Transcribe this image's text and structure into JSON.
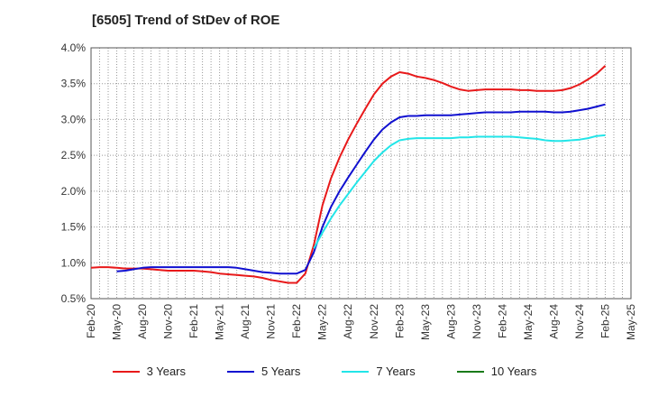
{
  "chart_data": {
    "type": "line",
    "title": "[6505]  Trend of StDev of ROE",
    "xlabel": "",
    "ylabel": "",
    "ylim": [
      0.5,
      4.0
    ],
    "y_ticks": [
      0.5,
      1.0,
      1.5,
      2.0,
      2.5,
      3.0,
      3.5,
      4.0
    ],
    "y_tick_labels": [
      "0.5%",
      "1.0%",
      "1.5%",
      "2.0%",
      "2.5%",
      "3.0%",
      "3.5%",
      "4.0%"
    ],
    "x_tick_labels": [
      "Feb-20",
      "May-20",
      "Aug-20",
      "Nov-20",
      "Feb-21",
      "May-21",
      "Aug-21",
      "Nov-21",
      "Feb-22",
      "May-22",
      "Aug-22",
      "Nov-22",
      "Feb-23",
      "May-23",
      "Aug-23",
      "Nov-23",
      "Feb-24",
      "May-24",
      "Aug-24",
      "Nov-24",
      "Feb-25",
      "May-25"
    ],
    "grid": true,
    "legend_position": "bottom",
    "series": [
      {
        "name": "3 Years",
        "color": "#e8191a",
        "x": [
          "Feb-20",
          "Mar-20",
          "Apr-20",
          "May-20",
          "Jun-20",
          "Jul-20",
          "Aug-20",
          "Sep-20",
          "Oct-20",
          "Nov-20",
          "Dec-20",
          "Jan-21",
          "Feb-21",
          "Mar-21",
          "Apr-21",
          "May-21",
          "Jun-21",
          "Jul-21",
          "Aug-21",
          "Sep-21",
          "Oct-21",
          "Nov-21",
          "Dec-21",
          "Jan-22",
          "Feb-22",
          "Mar-22",
          "Apr-22",
          "May-22",
          "Jun-22",
          "Jul-22",
          "Aug-22",
          "Sep-22",
          "Oct-22",
          "Nov-22",
          "Dec-22",
          "Jan-23",
          "Feb-23",
          "Mar-23",
          "Apr-23",
          "May-23",
          "Jun-23",
          "Jul-23",
          "Aug-23",
          "Sep-23",
          "Oct-23",
          "Nov-23",
          "Dec-23",
          "Jan-24",
          "Feb-24",
          "Mar-24",
          "Apr-24",
          "May-24",
          "Jun-24",
          "Jul-24",
          "Aug-24",
          "Sep-24",
          "Oct-24",
          "Nov-24",
          "Dec-24",
          "Jan-25",
          "Feb-25"
        ],
        "values": [
          0.93,
          0.94,
          0.94,
          0.93,
          0.92,
          0.92,
          0.92,
          0.91,
          0.9,
          0.89,
          0.89,
          0.89,
          0.89,
          0.88,
          0.87,
          0.85,
          0.84,
          0.83,
          0.82,
          0.81,
          0.79,
          0.76,
          0.74,
          0.72,
          0.72,
          0.85,
          1.25,
          1.8,
          2.18,
          2.47,
          2.72,
          2.94,
          3.15,
          3.35,
          3.5,
          3.6,
          3.66,
          3.64,
          3.6,
          3.58,
          3.55,
          3.51,
          3.46,
          3.42,
          3.4,
          3.41,
          3.42,
          3.42,
          3.42,
          3.42,
          3.41,
          3.41,
          3.4,
          3.4,
          3.4,
          3.41,
          3.44,
          3.49,
          3.56,
          3.64,
          3.75
        ]
      },
      {
        "name": "5 Years",
        "color": "#1010d0",
        "x": [
          "May-20",
          "Jun-20",
          "Jul-20",
          "Aug-20",
          "Sep-20",
          "Oct-20",
          "Nov-20",
          "Dec-20",
          "Jan-21",
          "Feb-21",
          "Mar-21",
          "Apr-21",
          "May-21",
          "Jun-21",
          "Jul-21",
          "Aug-21",
          "Sep-21",
          "Oct-21",
          "Nov-21",
          "Dec-21",
          "Jan-22",
          "Feb-22",
          "Mar-22",
          "Apr-22",
          "May-22",
          "Jun-22",
          "Jul-22",
          "Aug-22",
          "Sep-22",
          "Oct-22",
          "Nov-22",
          "Dec-22",
          "Jan-23",
          "Feb-23",
          "Mar-23",
          "Apr-23",
          "May-23",
          "Jun-23",
          "Jul-23",
          "Aug-23",
          "Sep-23",
          "Oct-23",
          "Nov-23",
          "Dec-23",
          "Jan-24",
          "Feb-24",
          "Mar-24",
          "Apr-24",
          "May-24",
          "Jun-24",
          "Jul-24",
          "Aug-24",
          "Sep-24",
          "Oct-24",
          "Nov-24",
          "Dec-24",
          "Jan-25",
          "Feb-25"
        ],
        "values": [
          0.88,
          0.89,
          0.91,
          0.93,
          0.94,
          0.94,
          0.94,
          0.94,
          0.94,
          0.94,
          0.94,
          0.94,
          0.94,
          0.94,
          0.93,
          0.91,
          0.89,
          0.87,
          0.86,
          0.85,
          0.85,
          0.85,
          0.9,
          1.15,
          1.5,
          1.78,
          2.0,
          2.19,
          2.37,
          2.55,
          2.72,
          2.86,
          2.96,
          3.03,
          3.05,
          3.05,
          3.06,
          3.06,
          3.06,
          3.06,
          3.07,
          3.08,
          3.09,
          3.1,
          3.1,
          3.1,
          3.1,
          3.11,
          3.11,
          3.11,
          3.11,
          3.1,
          3.1,
          3.11,
          3.13,
          3.15,
          3.18,
          3.21
        ]
      },
      {
        "name": "7 Years",
        "color": "#22e5e8",
        "x": [
          "Apr-22",
          "May-22",
          "Jun-22",
          "Jul-22",
          "Aug-22",
          "Sep-22",
          "Oct-22",
          "Nov-22",
          "Dec-22",
          "Jan-23",
          "Feb-23",
          "Mar-23",
          "Apr-23",
          "May-23",
          "Jun-23",
          "Jul-23",
          "Aug-23",
          "Sep-23",
          "Oct-23",
          "Nov-23",
          "Dec-23",
          "Jan-24",
          "Feb-24",
          "Mar-24",
          "Apr-24",
          "May-24",
          "Jun-24",
          "Jul-24",
          "Aug-24",
          "Sep-24",
          "Oct-24",
          "Nov-24",
          "Dec-24",
          "Jan-25",
          "Feb-25"
        ],
        "values": [
          1.2,
          1.42,
          1.62,
          1.8,
          1.96,
          2.12,
          2.27,
          2.42,
          2.54,
          2.64,
          2.71,
          2.73,
          2.74,
          2.74,
          2.74,
          2.74,
          2.74,
          2.75,
          2.75,
          2.76,
          2.76,
          2.76,
          2.76,
          2.76,
          2.75,
          2.74,
          2.73,
          2.71,
          2.7,
          2.7,
          2.71,
          2.72,
          2.74,
          2.77,
          2.78
        ]
      },
      {
        "name": "10 Years",
        "color": "#1a7a1a",
        "x": [],
        "values": []
      }
    ]
  }
}
